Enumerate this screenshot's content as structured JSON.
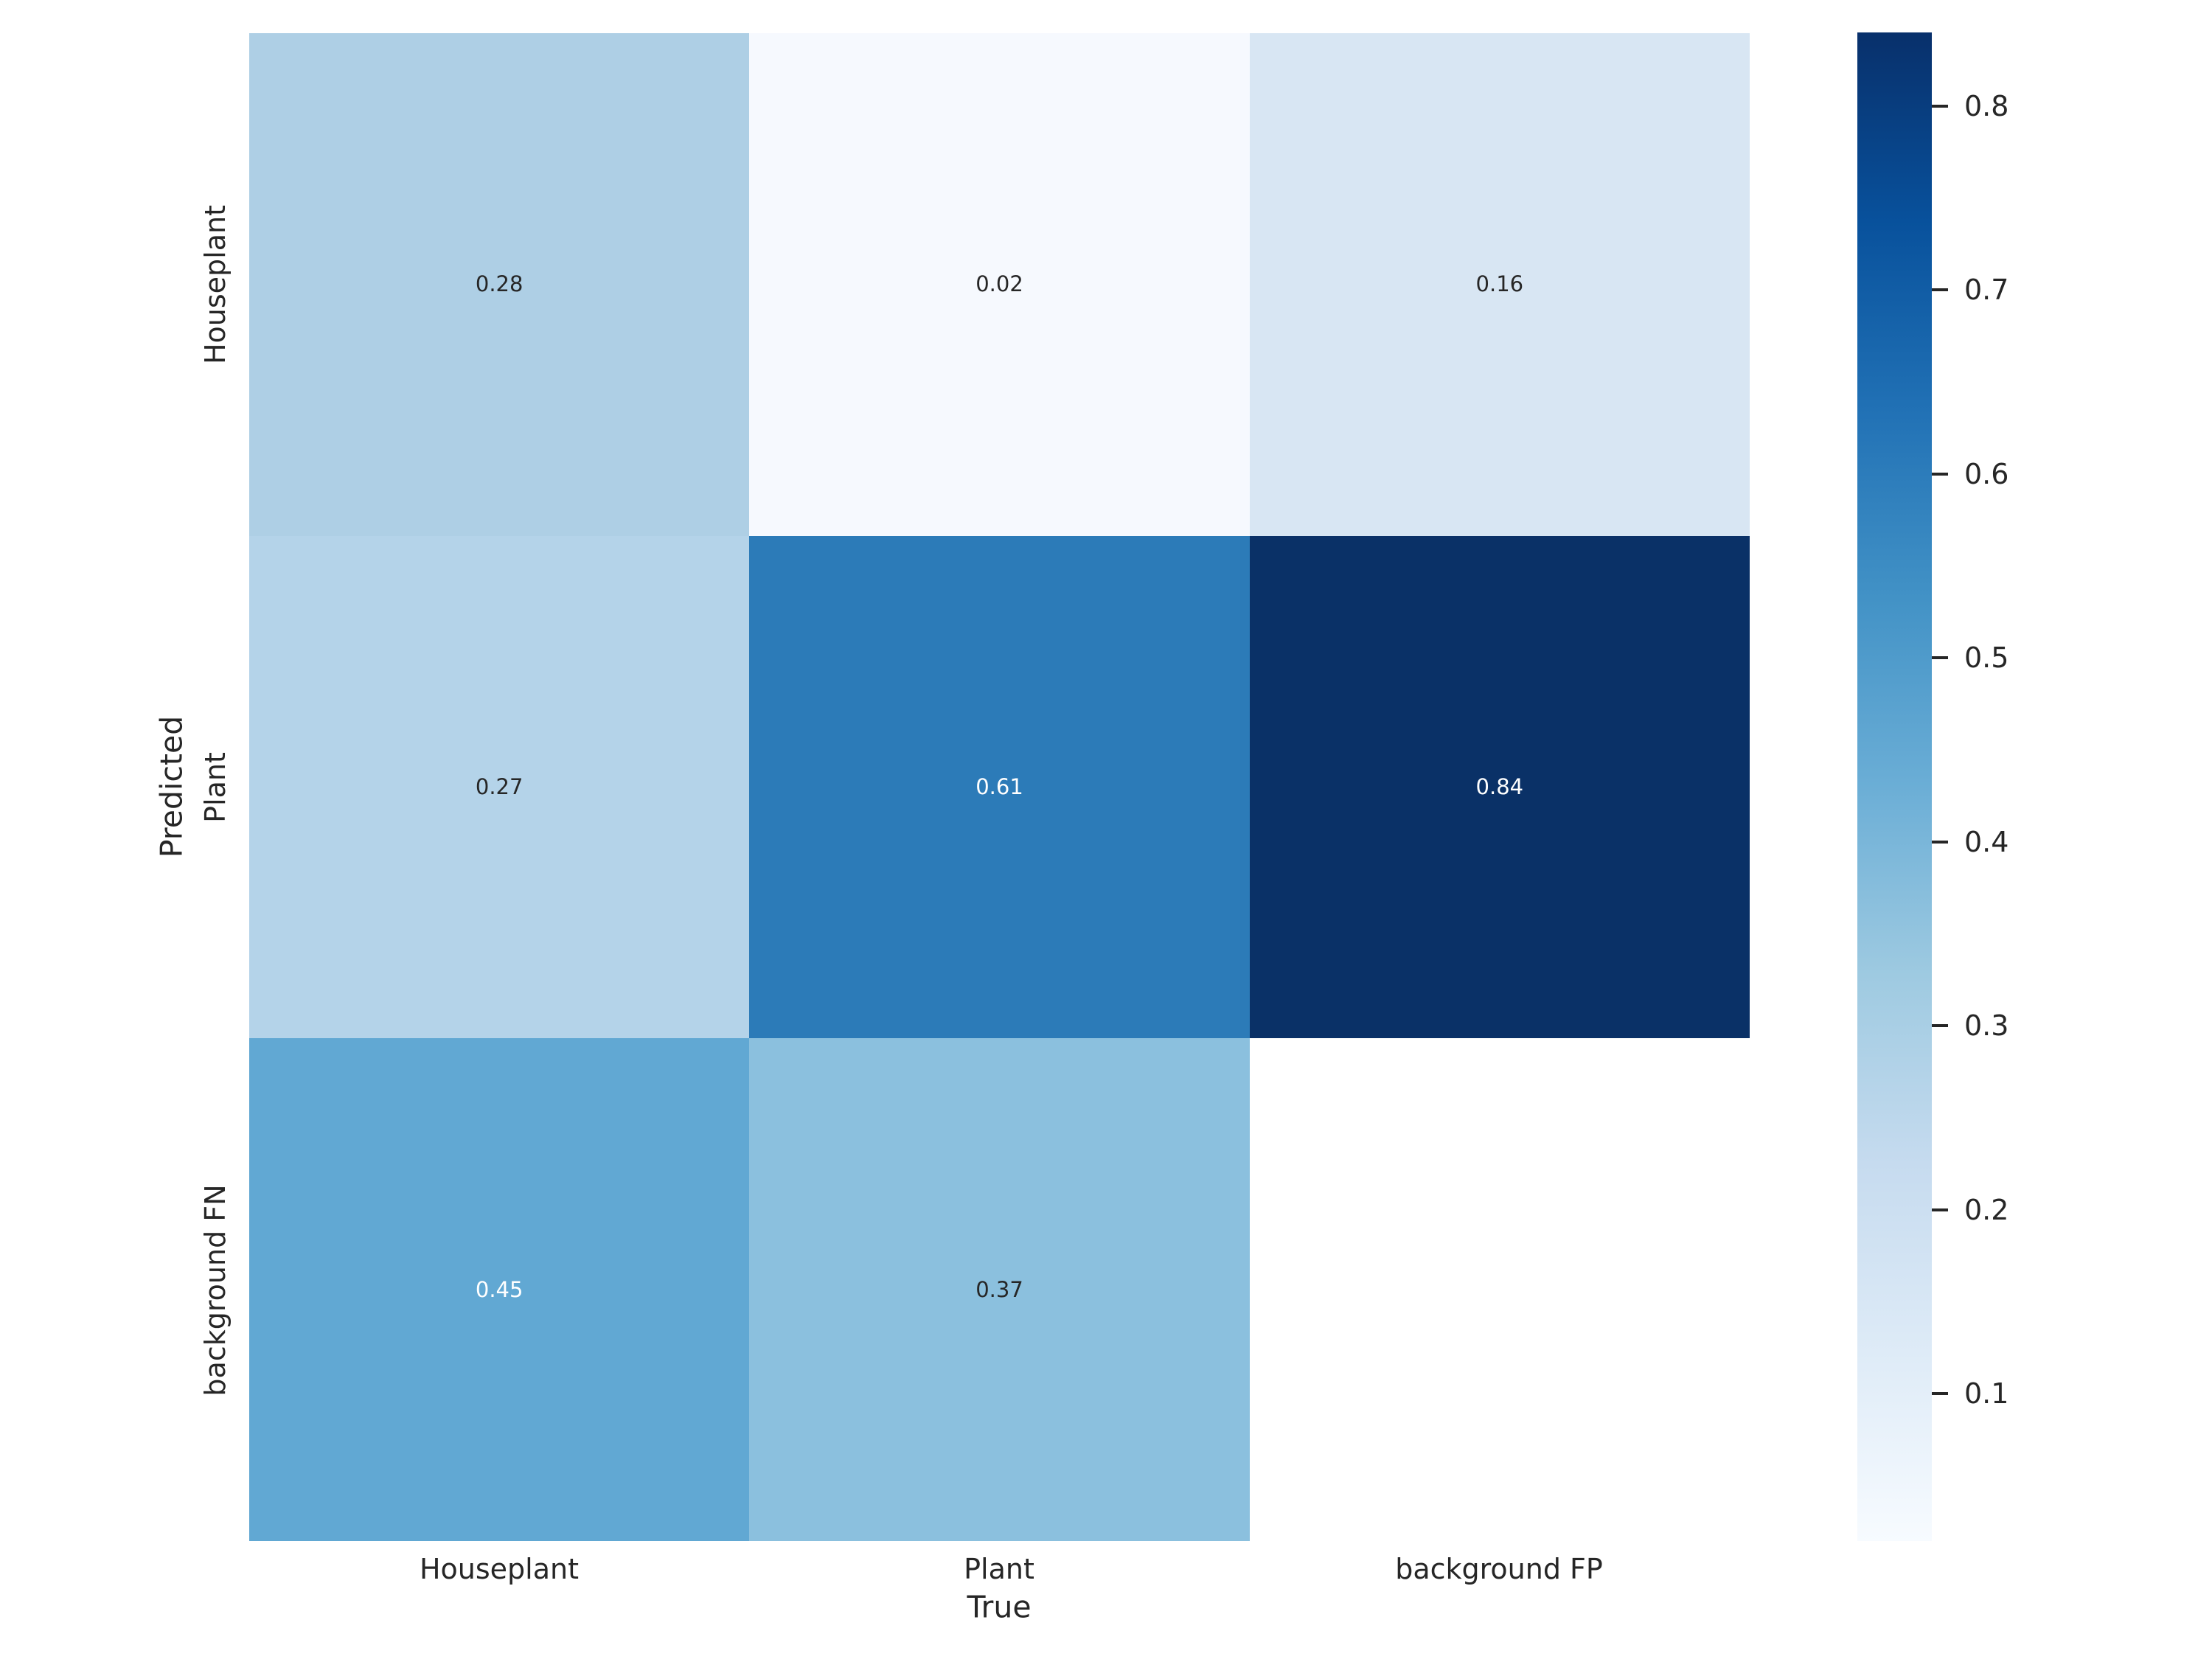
{
  "chart_data": {
    "type": "heatmap",
    "title": "",
    "xlabel": "True",
    "ylabel": "Predicted",
    "x_categories": [
      "Houseplant",
      "Plant",
      "background FP"
    ],
    "y_categories": [
      "Houseplant",
      "Plant",
      "background FN"
    ],
    "values": [
      [
        0.28,
        0.02,
        0.16
      ],
      [
        0.27,
        0.61,
        0.84
      ],
      [
        0.45,
        0.37,
        null
      ]
    ],
    "annotations": [
      [
        "0.28",
        "0.02",
        "0.16"
      ],
      [
        "0.27",
        "0.61",
        "0.84"
      ],
      [
        "0.45",
        "0.37",
        ""
      ]
    ],
    "cell_colors": [
      [
        "#aecfe5",
        "#f6f9fe",
        "#d8e6f3"
      ],
      [
        "#b4d3e9",
        "#2c7bb8",
        "#0a3167"
      ],
      [
        "#61a8d3",
        "#8bc0de",
        "#ffffff"
      ]
    ],
    "text_colors": [
      [
        "#262626",
        "#262626",
        "#262626"
      ],
      [
        "#262626",
        "#ffffff",
        "#ffffff"
      ],
      [
        "#ffffff",
        "#262626",
        "#262626"
      ]
    ],
    "grid": false,
    "colormap": "Blues",
    "colorbar": {
      "position": "right",
      "vmin": 0.02,
      "vmax": 0.84,
      "tick_values": [
        0.8,
        0.7,
        0.6,
        0.5,
        0.4,
        0.3,
        0.2,
        0.1
      ],
      "tick_labels": [
        "0.8",
        "0.7",
        "0.6",
        "0.5",
        "0.4",
        "0.3",
        "0.2",
        "0.1"
      ],
      "gradient_bottom_to_top": [
        "#f7fbff",
        "#deebf7",
        "#c6dbef",
        "#9ecae1",
        "#6baed6",
        "#4292c6",
        "#2171b5",
        "#08519c",
        "#08306b"
      ]
    }
  }
}
